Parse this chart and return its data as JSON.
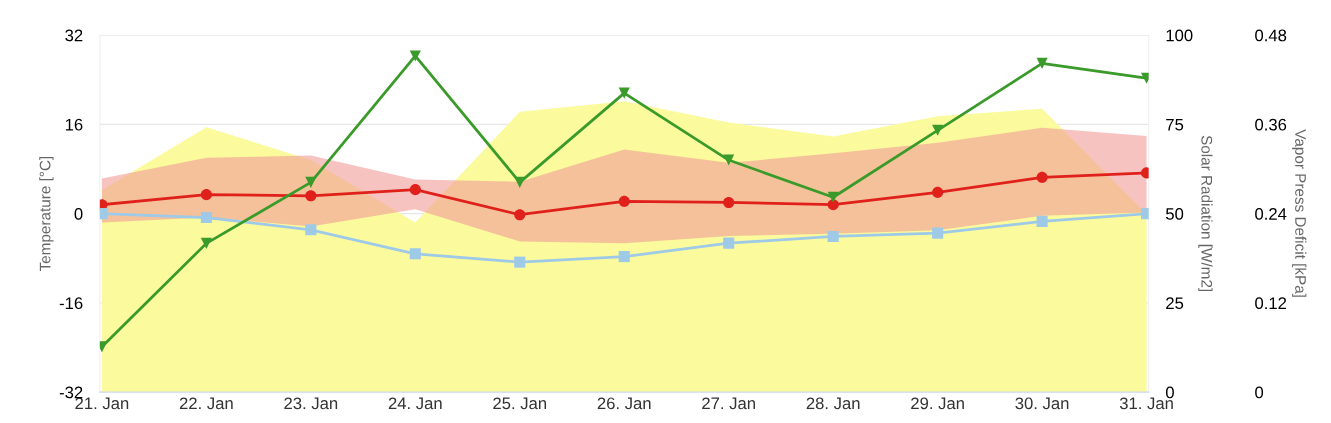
{
  "chart_data": {
    "type": "line",
    "categories": [
      "21. Jan",
      "22. Jan",
      "23. Jan",
      "24. Jan",
      "25. Jan",
      "26. Jan",
      "27. Jan",
      "28. Jan",
      "29. Jan",
      "30. Jan",
      "31. Jan"
    ],
    "ylabel": "Temperature [°C]",
    "y2label": "Solar Radiation [W/m2]",
    "y3label": "Vapor Press Deficit [kPa]",
    "ylim": [
      -32,
      32
    ],
    "yticks": [
      -32,
      -16,
      0,
      16,
      32
    ],
    "y2lim": [
      0,
      100
    ],
    "y2ticks": [
      0,
      25,
      50,
      75,
      100
    ],
    "y3lim": [
      0,
      0.48
    ],
    "y3ticks": [
      0,
      0.12,
      0.24,
      0.36,
      0.48
    ],
    "grid": true,
    "series": [
      {
        "type": "area",
        "axis": "y2",
        "color": "#fbfb9e",
        "values": [
          56.6,
          74.2,
          65,
          47.5,
          78.5,
          81.5,
          75.5,
          71.6,
          77.3,
          79.4,
          49.9
        ]
      },
      {
        "color": "#e0201b",
        "marker": "circle",
        "values": [
          1.6,
          3.4,
          3.2,
          4.3,
          -0.2,
          2.2,
          2.0,
          1.6,
          3.8,
          6.5,
          7.3
        ],
        "lower": [
          -1.6,
          -0.7,
          -2.3,
          0.8,
          -5.0,
          -5.3,
          -4.0,
          -3.6,
          -3.0,
          -0.4,
          0.2
        ],
        "upper": [
          6.3,
          10.0,
          10.4,
          6.1,
          5.7,
          11.5,
          9.1,
          10.8,
          12.7,
          15.4,
          13.9
        ]
      },
      {
        "color": "#9ecae8",
        "marker": "square",
        "values": [
          0,
          -0.7,
          -2.9,
          -7.2,
          -8.7,
          -7.7,
          -5.3,
          -4.1,
          -3.5,
          -1.4,
          0
        ]
      },
      {
        "axis": "y3",
        "color": "#3a9a2a",
        "marker": "triangle",
        "values": [
          0.061,
          0.2,
          0.282,
          0.452,
          0.282,
          0.402,
          0.312,
          0.262,
          0.352,
          0.442,
          0.422
        ]
      }
    ]
  }
}
